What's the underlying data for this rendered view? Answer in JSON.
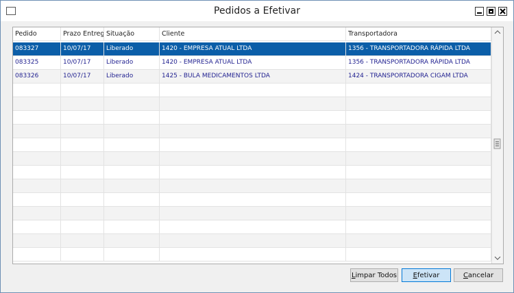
{
  "header": {
    "title": "Pedidos a Efetivar"
  },
  "table": {
    "columns": [
      "Pedido",
      "Prazo Entrega",
      "Situação",
      "Cliente",
      "Transportadora"
    ],
    "rows": [
      [
        "083327",
        "10/07/17",
        "Liberado",
        "1420 - EMPRESA ATUAL LTDA",
        "1356 - TRANSPORTADORA RÁPIDA LTDA"
      ],
      [
        "083325",
        "10/07/17",
        "Liberado",
        "1420 - EMPRESA ATUAL LTDA",
        "1356 - TRANSPORTADORA RÁPIDA LTDA"
      ],
      [
        "083326",
        "10/07/17",
        "Liberado",
        "1425 - BULA MEDICAMENTOS LTDA",
        "1424 - TRANSPORTADORA CIGAM LTDA"
      ]
    ]
  },
  "buttons": [
    "Limpar Todos",
    "Efetivar",
    "Cancelar"
  ]
}
